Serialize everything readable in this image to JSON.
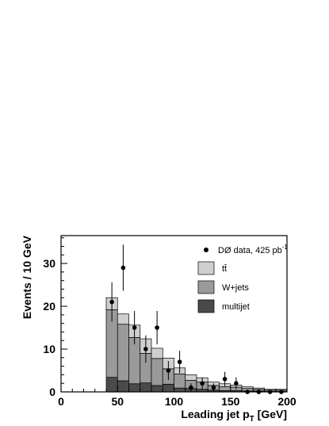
{
  "chart_data": {
    "type": "bar",
    "xlabel": "Leading jet p",
    "xlabel_sub": "T",
    "xlabel_unit": " [GeV]",
    "ylabel": "Events / 10 GeV",
    "xlim": [
      0,
      200
    ],
    "ylim": [
      0,
      36.5
    ],
    "xticks": [
      0,
      50,
      100,
      150,
      200
    ],
    "yticks": [
      0,
      10,
      20,
      30
    ],
    "bin_edges": [
      40,
      50,
      60,
      70,
      80,
      90,
      100,
      110,
      120,
      130,
      140,
      150,
      160,
      170,
      180,
      190,
      200
    ],
    "stacked": true,
    "series": [
      {
        "name": "multijet",
        "color": "#4a4a4a",
        "values": [
          3.4,
          2.6,
          1.9,
          2.1,
          1.5,
          1.8,
          0.9,
          0.8,
          0.6,
          0.4,
          0.3,
          0.3,
          0.2,
          0.2,
          0.1,
          0.1
        ]
      },
      {
        "name": "W+jets",
        "color": "#9a9a9a",
        "values": [
          15.8,
          13.2,
          10.8,
          6.9,
          6.3,
          3.6,
          3.3,
          1.9,
          1.7,
          1.1,
          0.9,
          0.8,
          0.6,
          0.4,
          0.3,
          0.3
        ]
      },
      {
        "name": "tt̄",
        "color": "#cfcfcf",
        "values": [
          2.8,
          2.4,
          2.9,
          3.4,
          2.4,
          2.5,
          1.4,
          1.3,
          1.0,
          0.8,
          0.7,
          0.5,
          0.4,
          0.3,
          0.2,
          0.2
        ]
      }
    ],
    "data_points": {
      "name": "DØ data, 425 pb",
      "name_sup": "-1",
      "x": [
        45,
        55,
        65,
        75,
        85,
        95,
        105,
        115,
        125,
        135,
        145,
        155,
        165,
        175,
        185,
        195
      ],
      "y": [
        21,
        29,
        15,
        10,
        15,
        5,
        7,
        1,
        2,
        1,
        3,
        2,
        0,
        0,
        0,
        0
      ],
      "err": [
        4.6,
        5.4,
        3.9,
        3.2,
        3.9,
        2.2,
        2.6,
        1.0,
        1.4,
        1.0,
        1.7,
        1.4,
        0,
        0,
        0,
        0
      ]
    },
    "legend": {
      "placement": "top-right",
      "entries": [
        {
          "kind": "point",
          "label": "DØ data, 425 pb",
          "sup": "-1"
        },
        {
          "kind": "box",
          "label": "tt̄",
          "color": "#cfcfcf"
        },
        {
          "kind": "box",
          "label": "W+jets",
          "color": "#9a9a9a"
        },
        {
          "kind": "box",
          "label": "multijet",
          "color": "#4a4a4a"
        }
      ]
    }
  }
}
